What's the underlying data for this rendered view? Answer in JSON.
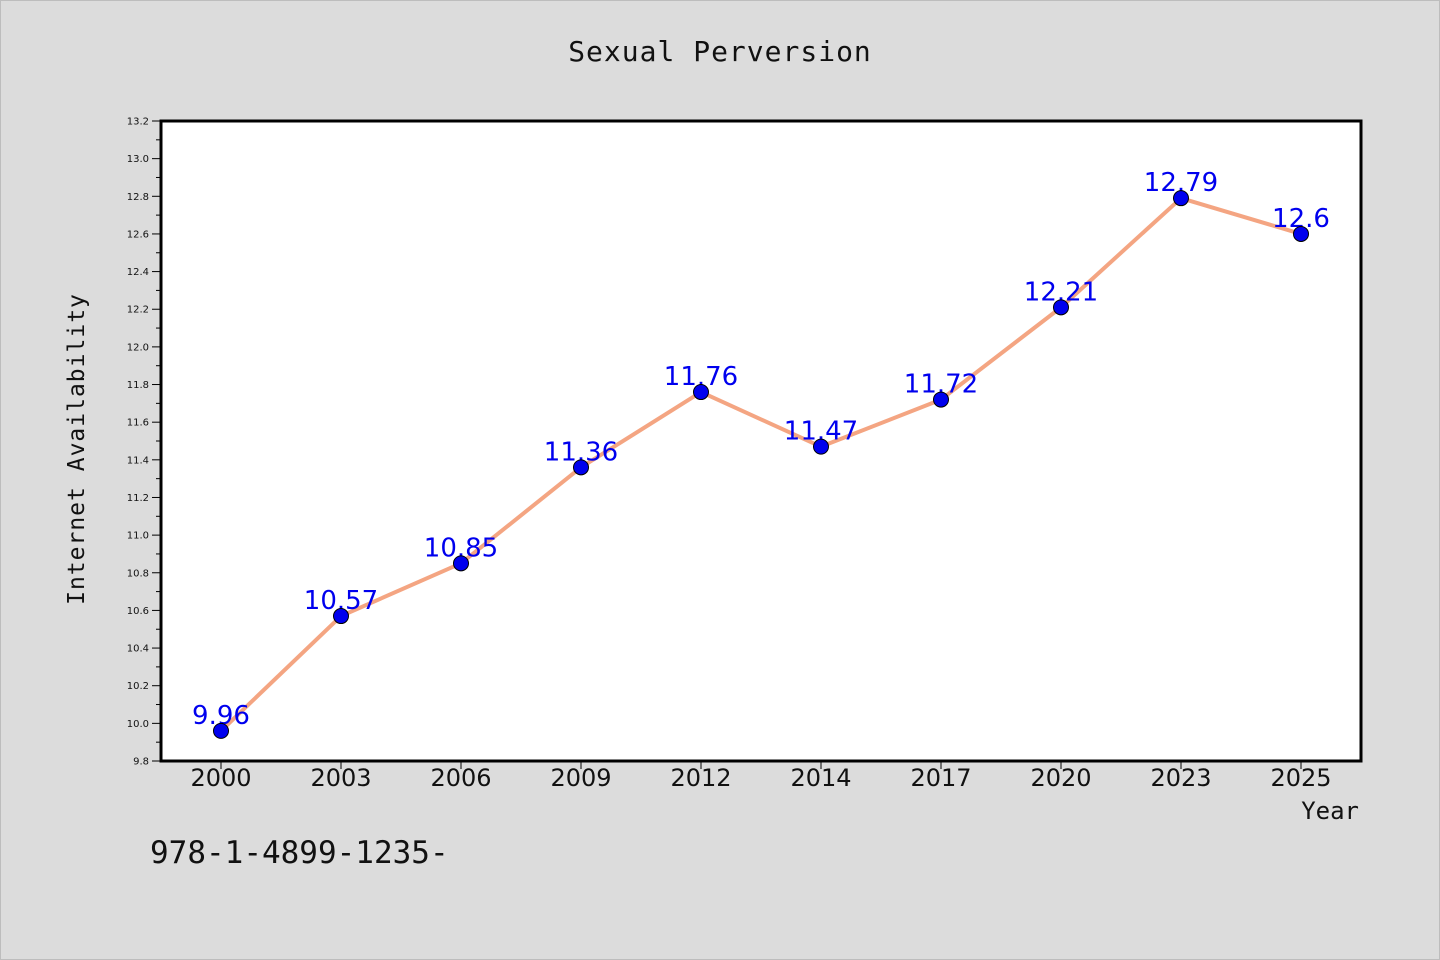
{
  "chart_data": {
    "type": "line",
    "title": "Sexual Perversion",
    "xlabel": "Year",
    "ylabel": "Internet Availability",
    "categories": [
      "2000",
      "2003",
      "2006",
      "2009",
      "2012",
      "2014",
      "2017",
      "2020",
      "2023",
      "2025"
    ],
    "series": [
      {
        "values": [
          9.96,
          10.57,
          10.85,
          11.36,
          11.76,
          11.47,
          11.72,
          12.21,
          12.79,
          12.6
        ]
      }
    ],
    "data_labels": [
      "9.96",
      "10.57",
      "10.85",
      "11.36",
      "11.76",
      "11.47",
      "11.72",
      "12.21",
      "12.79",
      "12.6"
    ],
    "ylim": [
      9.8,
      13.2
    ],
    "yticks": [
      "9.8",
      "10.0",
      "10.2",
      "10.4",
      "10.6",
      "10.8",
      "11.0",
      "11.2",
      "11.4",
      "11.6",
      "11.8",
      "12.0",
      "12.2",
      "12.4",
      "12.6",
      "12.8",
      "13.0",
      "13.2"
    ],
    "grid": false,
    "colors": {
      "line": "#f4a582",
      "marker": "#0000ee",
      "label": "#0000ee"
    }
  },
  "footnote": "978-1-4899-1235-"
}
